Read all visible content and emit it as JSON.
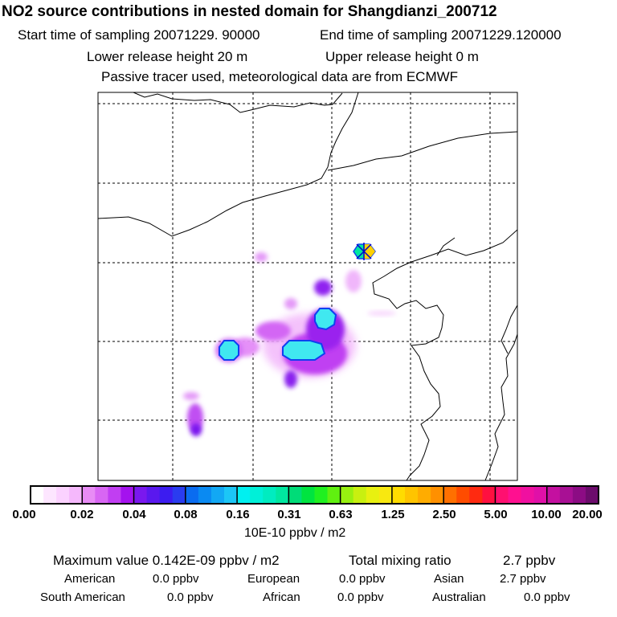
{
  "header": {
    "title": "NO2 source contributions in nested domain for Shangdianzi_200712",
    "start_time": "Start time of sampling 20071229. 90000",
    "end_time": "End time of sampling 20071229.120000",
    "lower_height": "Lower release height   20 m",
    "upper_height": "Upper release height    0 m",
    "met_note": "Passive tracer used, meteorological data are from ECMWF"
  },
  "colorbar": {
    "ticks": [
      "0.00",
      "0.02",
      "0.04",
      "0.08",
      "0.16",
      "0.31",
      "0.63",
      "1.25",
      "2.50",
      "5.00",
      "10.00",
      "20.00"
    ],
    "unit": "10E-10 ppbv / m2",
    "colors": [
      [
        "#ffffff",
        "#fde6ff",
        "#fbd2ff",
        "#f5b8fc"
      ],
      [
        "#e88cf5",
        "#d866f3",
        "#c13ef2",
        "#a412ee"
      ],
      [
        "#7a18ee",
        "#5a18ee",
        "#3c1cf0",
        "#2a3cf0"
      ],
      [
        "#0a6cf0",
        "#0a8af2",
        "#12a8f4",
        "#1cc6f6"
      ],
      [
        "#00f0f0",
        "#00f0d8",
        "#00ecc0",
        "#00e8a0"
      ],
      [
        "#00dc78",
        "#00e440",
        "#20f020",
        "#60f010"
      ],
      [
        "#98f010",
        "#c8f010",
        "#e8f010",
        "#f8e810"
      ],
      [
        "#ffdc00",
        "#ffc400",
        "#ffac00",
        "#ff9000"
      ],
      [
        "#ff7000",
        "#ff4c00",
        "#ff2a10",
        "#ff1040"
      ],
      [
        "#ff1070",
        "#ff1090",
        "#f010a0",
        "#e010a8"
      ],
      [
        "#c410a0",
        "#a81094",
        "#8c0c84",
        "#6c0c6c"
      ]
    ]
  },
  "stats": {
    "max_label": "Maximum value  0.142E-09 ppbv / m2",
    "total_label": "Total mixing ratio",
    "total_value": "2.7 ppbv",
    "regions": [
      {
        "name": "American",
        "value": "0.0 ppbv"
      },
      {
        "name": "European",
        "value": "0.0 ppbv"
      },
      {
        "name": "Asian",
        "value": "2.7 ppbv"
      },
      {
        "name": "South American",
        "value": "0.0 ppbv"
      },
      {
        "name": "African",
        "value": "0.0 ppbv"
      },
      {
        "name": "Australian",
        "value": "0.0 ppbv"
      }
    ]
  },
  "map": {
    "station_colors": {
      "left": "#00e8a0",
      "right": "#ffd000",
      "cross": "#0000cc"
    },
    "plume_colors": {
      "light": "#f3b8fb",
      "mid": "#d060f5",
      "violet": "#a020f0",
      "deep": "#7818ee",
      "blue": "#3a20ee",
      "cyan": "#40e8f0",
      "cyan_edge": "#1040f0"
    }
  }
}
